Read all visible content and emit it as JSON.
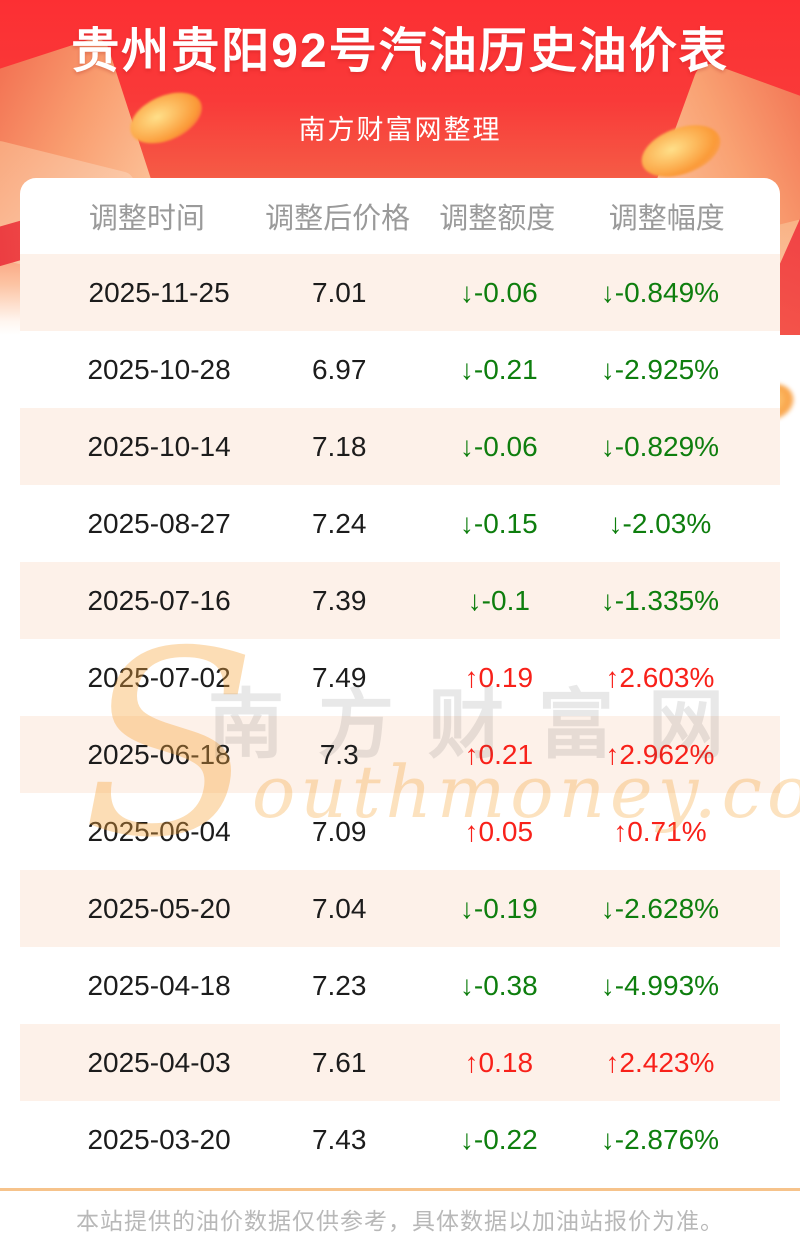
{
  "page": {
    "title": "贵州贵阳92号汽油历史油价表",
    "subtitle": "南方财富网整理"
  },
  "table": {
    "columns": [
      "调整时间",
      "调整后价格",
      "调整额度",
      "调整幅度"
    ],
    "rows": [
      {
        "date": "2025-11-25",
        "price": "7.01",
        "change": "↓-0.06",
        "pct": "↓-0.849%",
        "dir": "down"
      },
      {
        "date": "2025-10-28",
        "price": "6.97",
        "change": "↓-0.21",
        "pct": "↓-2.925%",
        "dir": "down"
      },
      {
        "date": "2025-10-14",
        "price": "7.18",
        "change": "↓-0.06",
        "pct": "↓-0.829%",
        "dir": "down"
      },
      {
        "date": "2025-08-27",
        "price": "7.24",
        "change": "↓-0.15",
        "pct": "↓-2.03%",
        "dir": "down"
      },
      {
        "date": "2025-07-16",
        "price": "7.39",
        "change": "↓-0.1",
        "pct": "↓-1.335%",
        "dir": "down"
      },
      {
        "date": "2025-07-02",
        "price": "7.49",
        "change": "↑0.19",
        "pct": "↑2.603%",
        "dir": "up"
      },
      {
        "date": "2025-06-18",
        "price": "7.3",
        "change": "↑0.21",
        "pct": "↑2.962%",
        "dir": "up"
      },
      {
        "date": "2025-06-04",
        "price": "7.09",
        "change": "↑0.05",
        "pct": "↑0.71%",
        "dir": "up"
      },
      {
        "date": "2025-05-20",
        "price": "7.04",
        "change": "↓-0.19",
        "pct": "↓-2.628%",
        "dir": "down"
      },
      {
        "date": "2025-04-18",
        "price": "7.23",
        "change": "↓-0.38",
        "pct": "↓-4.993%",
        "dir": "down"
      },
      {
        "date": "2025-04-03",
        "price": "7.61",
        "change": "↑0.18",
        "pct": "↑2.423%",
        "dir": "up"
      },
      {
        "date": "2025-03-20",
        "price": "7.43",
        "change": "↓-0.22",
        "pct": "↓-2.876%",
        "dir": "down"
      }
    ]
  },
  "watermark": {
    "initial": "S",
    "cn": "南方财富网",
    "en": "outhmoney.com"
  },
  "footer": {
    "note": "本站提供的油价数据仅供参考，具体数据以加油站报价为准。"
  },
  "colors": {
    "header_red": "#fc2f33",
    "up_red": "#f8211a",
    "down_green": "#0e7e0e",
    "row_alt_bg": "#fdf1e9",
    "divider_orange": "#f6c38b"
  }
}
